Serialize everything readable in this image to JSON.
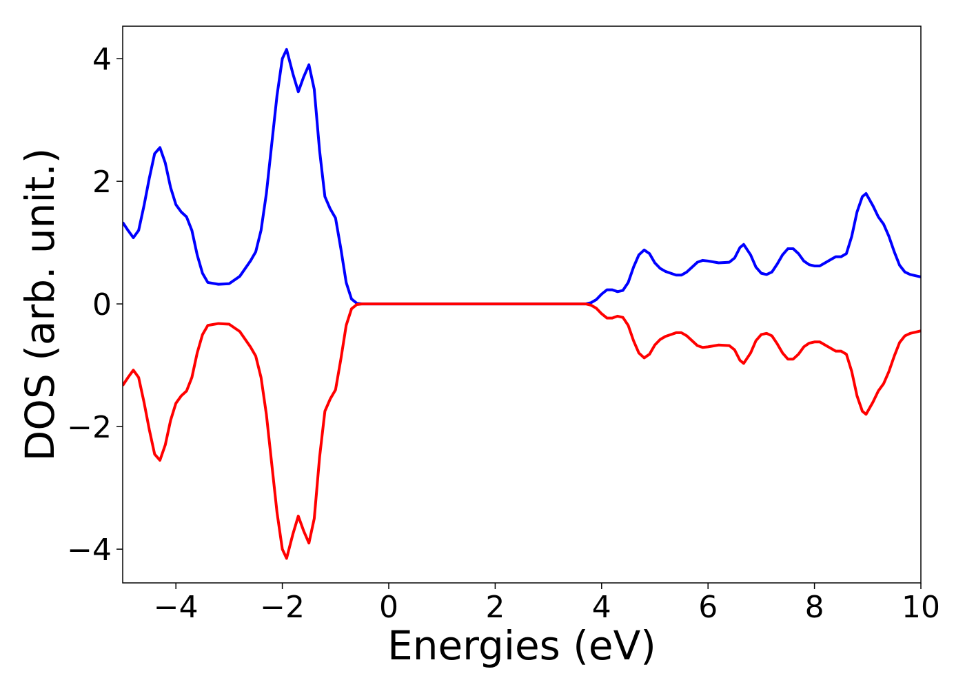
{
  "chart_data": {
    "type": "line",
    "xlabel": "Energies (eV)",
    "ylabel": "DOS (arb. unit.)",
    "x": [
      -5,
      -4.9,
      -4.8,
      -4.7,
      -4.6,
      -4.5,
      -4.4,
      -4.3,
      -4.2,
      -4.1,
      -4,
      -3.9,
      -3.8,
      -3.7,
      -3.6,
      -3.5,
      -3.4,
      -3.2,
      -3,
      -2.8,
      -2.6,
      -2.5,
      -2.4,
      -2.3,
      -2.2,
      -2.1,
      -2,
      -1.92,
      -1.8,
      -1.7,
      -1.6,
      -1.5,
      -1.4,
      -1.3,
      -1.2,
      -1.1,
      -1,
      -0.9,
      -0.8,
      -0.7,
      -0.6,
      -0.5,
      0,
      1,
      2,
      3,
      3.7,
      3.8,
      3.9,
      4,
      4.1,
      4.2,
      4.3,
      4.4,
      4.5,
      4.6,
      4.7,
      4.8,
      4.9,
      5,
      5.1,
      5.2,
      5.3,
      5.4,
      5.5,
      5.6,
      5.7,
      5.8,
      5.9,
      6,
      6.2,
      6.4,
      6.5,
      6.6,
      6.67,
      6.8,
      6.9,
      7,
      7.1,
      7.2,
      7.3,
      7.4,
      7.5,
      7.6,
      7.7,
      7.8,
      7.9,
      8,
      8.1,
      8.2,
      8.3,
      8.4,
      8.5,
      8.6,
      8.7,
      8.8,
      8.9,
      8.97,
      9.1,
      9.2,
      9.3,
      9.4,
      9.5,
      9.6,
      9.7,
      9.8,
      9.9,
      10
    ],
    "series": [
      {
        "color": "#0000ff",
        "values": [
          1.33,
          1.2,
          1.08,
          1.2,
          1.6,
          2.05,
          2.45,
          2.55,
          2.3,
          1.9,
          1.62,
          1.5,
          1.42,
          1.2,
          0.8,
          0.5,
          0.35,
          0.32,
          0.33,
          0.45,
          0.7,
          0.85,
          1.2,
          1.8,
          2.6,
          3.4,
          4.0,
          4.15,
          3.75,
          3.46,
          3.7,
          3.9,
          3.5,
          2.5,
          1.75,
          1.55,
          1.4,
          0.9,
          0.35,
          0.08,
          0.01,
          0,
          0,
          0,
          0,
          0,
          0,
          0.02,
          0.07,
          0.16,
          0.23,
          0.23,
          0.2,
          0.22,
          0.35,
          0.6,
          0.8,
          0.88,
          0.82,
          0.67,
          0.58,
          0.53,
          0.5,
          0.47,
          0.47,
          0.52,
          0.6,
          0.68,
          0.71,
          0.7,
          0.67,
          0.68,
          0.75,
          0.92,
          0.97,
          0.8,
          0.6,
          0.5,
          0.48,
          0.52,
          0.65,
          0.8,
          0.9,
          0.9,
          0.82,
          0.7,
          0.64,
          0.62,
          0.62,
          0.67,
          0.72,
          0.77,
          0.77,
          0.82,
          1.1,
          1.5,
          1.75,
          1.8,
          1.6,
          1.42,
          1.3,
          1.1,
          0.85,
          0.63,
          0.52,
          0.48,
          0.46,
          0.44
        ]
      },
      {
        "color": "#ff0000",
        "values": [
          -1.33,
          -1.2,
          -1.08,
          -1.2,
          -1.6,
          -2.05,
          -2.45,
          -2.55,
          -2.3,
          -1.9,
          -1.62,
          -1.5,
          -1.42,
          -1.2,
          -0.8,
          -0.5,
          -0.35,
          -0.32,
          -0.33,
          -0.45,
          -0.7,
          -0.85,
          -1.2,
          -1.8,
          -2.6,
          -3.4,
          -4.0,
          -4.15,
          -3.75,
          -3.46,
          -3.7,
          -3.9,
          -3.5,
          -2.5,
          -1.75,
          -1.55,
          -1.4,
          -0.9,
          -0.35,
          -0.08,
          -0.01,
          0,
          0,
          0,
          0,
          0,
          0,
          -0.02,
          -0.07,
          -0.16,
          -0.23,
          -0.23,
          -0.2,
          -0.22,
          -0.35,
          -0.6,
          -0.8,
          -0.88,
          -0.82,
          -0.67,
          -0.58,
          -0.53,
          -0.5,
          -0.47,
          -0.47,
          -0.52,
          -0.6,
          -0.68,
          -0.71,
          -0.7,
          -0.67,
          -0.68,
          -0.75,
          -0.92,
          -0.97,
          -0.8,
          -0.6,
          -0.5,
          -0.48,
          -0.52,
          -0.65,
          -0.8,
          -0.9,
          -0.9,
          -0.82,
          -0.7,
          -0.64,
          -0.62,
          -0.62,
          -0.67,
          -0.72,
          -0.77,
          -0.77,
          -0.82,
          -1.1,
          -1.5,
          -1.75,
          -1.8,
          -1.6,
          -1.42,
          -1.3,
          -1.1,
          -0.85,
          -0.63,
          -0.52,
          -0.48,
          -0.46,
          -0.44
        ]
      }
    ],
    "xlim": [
      -5,
      10
    ],
    "xticks": [
      {
        "value": -4,
        "label": "−4"
      },
      {
        "value": -2,
        "label": "−2"
      },
      0,
      2,
      4,
      6,
      8,
      10
    ],
    "ylim": [
      -4.55,
      4.53
    ],
    "yticks": [
      {
        "value": -4,
        "label": "−4"
      },
      {
        "value": -2,
        "label": "−2"
      },
      0,
      2,
      4
    ],
    "grid": false
  }
}
